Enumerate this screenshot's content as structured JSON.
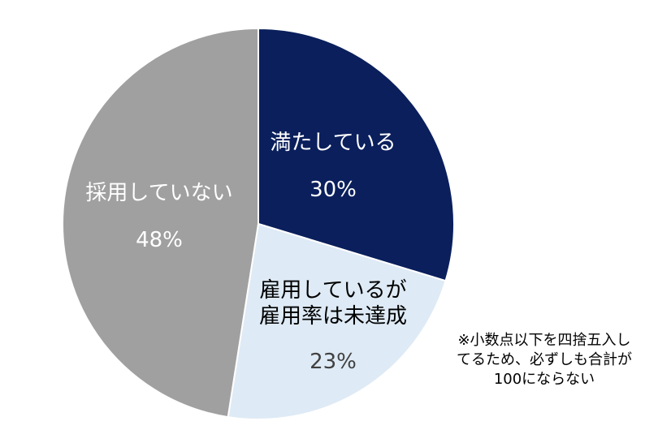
{
  "chart_data": {
    "type": "pie",
    "title": "",
    "slices": [
      {
        "label_lines": [
          "満たしている"
        ],
        "value": 30,
        "value_label": "30%",
        "color": "#0a1f5c",
        "text_color": "#ffffff"
      },
      {
        "label_lines": [
          "雇用しているが",
          "雇用率は未達成"
        ],
        "value": 23,
        "value_label": "23%",
        "color": "#deeaf5",
        "text_color": "#000000",
        "pct_color": "#404040"
      },
      {
        "label_lines": [
          "採用していない"
        ],
        "value": 48,
        "value_label": "48%",
        "color": "#a0a0a0",
        "text_color": "#ffffff"
      }
    ]
  },
  "note": {
    "lines": [
      "※小数点以下を四捨五入し",
      "てるため、必ずしも合計が",
      "100にならない"
    ]
  }
}
